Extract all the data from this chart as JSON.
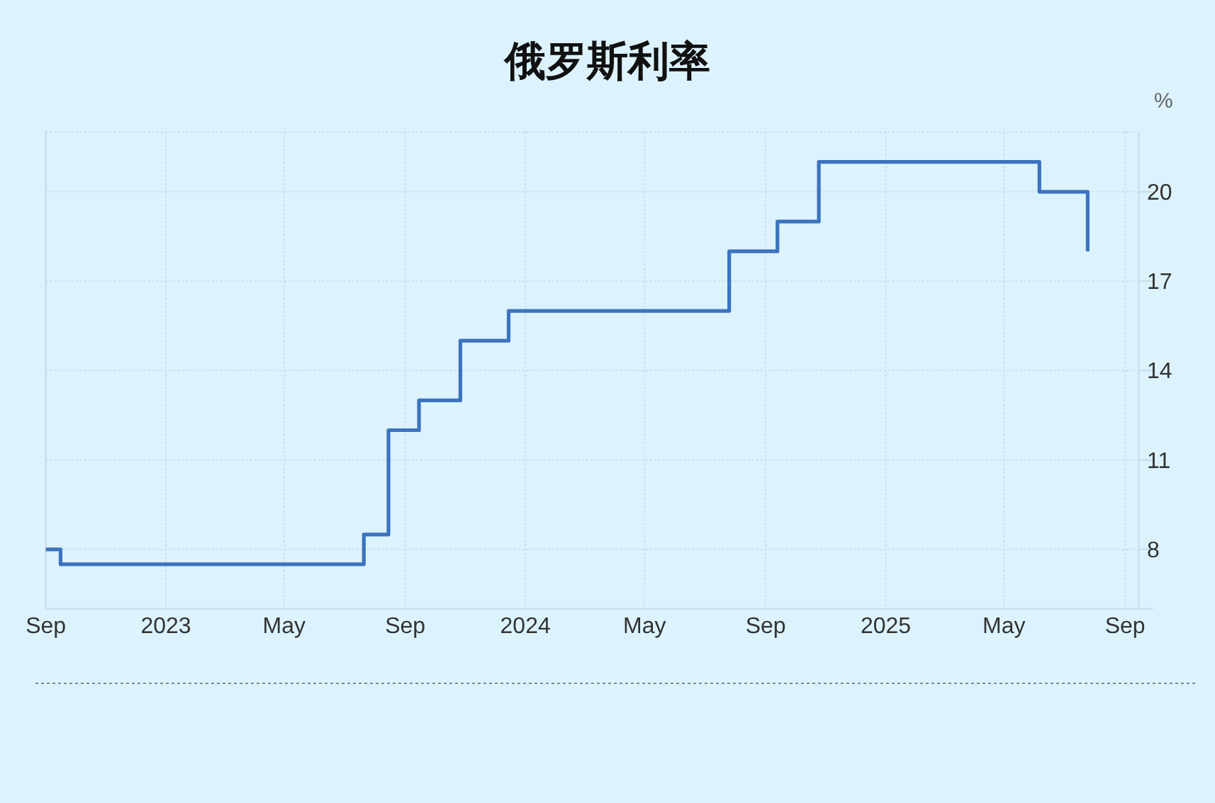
{
  "chart_data": {
    "type": "step",
    "title": "俄罗斯利率",
    "ylabel": "%",
    "x": [
      "2022-09-01",
      "2022-09-16",
      "2023-07-21",
      "2023-08-15",
      "2023-09-15",
      "2023-10-27",
      "2023-12-15",
      "2024-07-26",
      "2024-09-13",
      "2024-10-25",
      "2025-06-06",
      "2025-07-25"
    ],
    "values": [
      8,
      7.5,
      8.5,
      12,
      13,
      15,
      16,
      18,
      19,
      21,
      20,
      18
    ],
    "color": "#3b73bf",
    "xlim": [
      "2022-09-01",
      "2025-09-15"
    ],
    "xticks": [
      {
        "value": "2022-09-01",
        "label": "Sep"
      },
      {
        "value": "2023-01-01",
        "label": "2023"
      },
      {
        "value": "2023-05-01",
        "label": "May"
      },
      {
        "value": "2023-09-01",
        "label": "Sep"
      },
      {
        "value": "2024-01-01",
        "label": "2024"
      },
      {
        "value": "2024-05-01",
        "label": "May"
      },
      {
        "value": "2024-09-01",
        "label": "Sep"
      },
      {
        "value": "2025-01-01",
        "label": "2025"
      },
      {
        "value": "2025-05-01",
        "label": "May"
      },
      {
        "value": "2025-09-01",
        "label": "Sep"
      }
    ],
    "ylim": [
      6,
      22
    ],
    "yticks": [
      8,
      11,
      14,
      17,
      20
    ],
    "grid": true
  }
}
